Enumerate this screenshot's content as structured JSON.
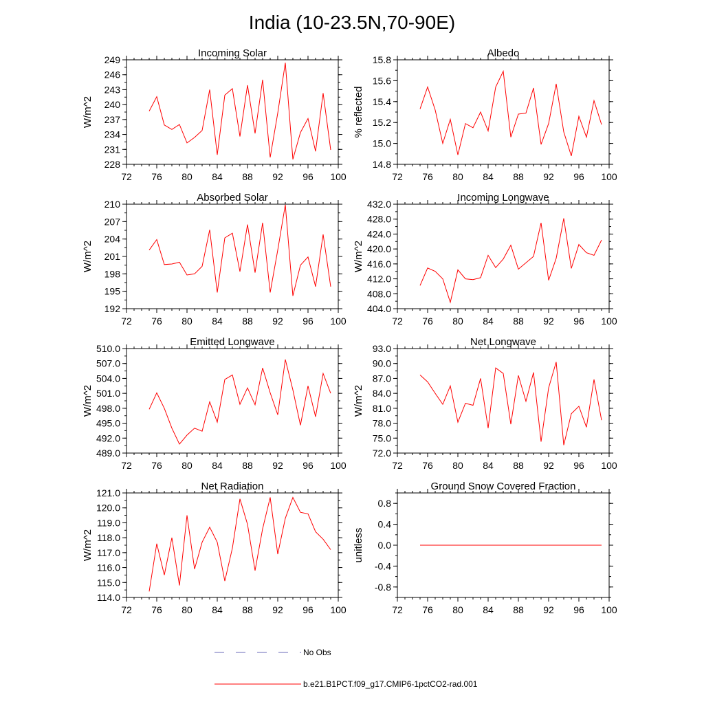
{
  "figure": {
    "title": "India (10-23.5N,70-90E)"
  },
  "legend": {
    "entries": [
      {
        "label": "No Obs",
        "color": "#6a6ab8",
        "style": "dashed"
      },
      {
        "label": "b.e21.B1PCT.f09_g17.CMIP6-1pctCO2-rad.001",
        "color": "#ff0000",
        "style": "solid"
      }
    ]
  },
  "chart_data": [
    {
      "type": "line",
      "title": "Incoming Solar",
      "ylabel": "W/m^2",
      "xlim": [
        72,
        100
      ],
      "ylim": [
        228,
        249
      ],
      "xticks": [
        "72",
        "76",
        "80",
        "84",
        "88",
        "92",
        "96",
        "100"
      ],
      "yticks": [
        "228",
        "231",
        "234",
        "237",
        "240",
        "243",
        "246",
        "249"
      ],
      "series": [
        {
          "color": "#ff0000",
          "x": [
            75,
            76,
            77,
            78,
            79,
            80,
            81,
            82,
            83,
            84,
            85,
            86,
            87,
            88,
            89,
            90,
            91,
            92,
            93,
            94,
            95,
            96,
            97,
            98,
            99
          ],
          "y": [
            238.7,
            241.6,
            235.9,
            235.0,
            236.0,
            232.3,
            233.4,
            234.8,
            243.0,
            229.9,
            241.9,
            243.2,
            233.6,
            243.9,
            234.2,
            245.0,
            229.4,
            238.3,
            248.4,
            229.0,
            234.4,
            237.2,
            230.6,
            242.3,
            230.9
          ]
        }
      ]
    },
    {
      "type": "line",
      "title": "Albedo",
      "ylabel": "% reflected",
      "xlim": [
        72,
        100
      ],
      "ylim": [
        14.8,
        15.8
      ],
      "xticks": [
        "72",
        "76",
        "80",
        "84",
        "88",
        "92",
        "96",
        "100"
      ],
      "yticks": [
        "14.8",
        "15.0",
        "15.2",
        "15.4",
        "15.6",
        "15.8"
      ],
      "series": [
        {
          "color": "#ff0000",
          "x": [
            75,
            76,
            77,
            78,
            79,
            80,
            81,
            82,
            83,
            84,
            85,
            86,
            87,
            88,
            89,
            90,
            91,
            92,
            93,
            94,
            95,
            96,
            97,
            98,
            99
          ],
          "y": [
            15.33,
            15.54,
            15.32,
            15.0,
            15.23,
            14.89,
            15.19,
            15.15,
            15.3,
            15.12,
            15.54,
            15.69,
            15.06,
            15.28,
            15.29,
            15.53,
            14.99,
            15.19,
            15.57,
            15.11,
            14.88,
            15.26,
            15.06,
            15.41,
            15.18
          ]
        }
      ]
    },
    {
      "type": "line",
      "title": "Absorbed Solar",
      "ylabel": "W/m^2",
      "xlim": [
        72,
        100
      ],
      "ylim": [
        192,
        210
      ],
      "xticks": [
        "72",
        "76",
        "80",
        "84",
        "88",
        "92",
        "96",
        "100"
      ],
      "yticks": [
        "192",
        "195",
        "198",
        "201",
        "204",
        "207",
        "210"
      ],
      "series": [
        {
          "color": "#ff0000",
          "x": [
            75,
            76,
            77,
            78,
            79,
            80,
            81,
            82,
            83,
            84,
            85,
            86,
            87,
            88,
            89,
            90,
            91,
            92,
            93,
            94,
            95,
            96,
            97,
            98,
            99
          ],
          "y": [
            202.1,
            203.9,
            199.6,
            199.7,
            200.0,
            197.8,
            198.0,
            199.3,
            205.6,
            194.8,
            204.2,
            205.0,
            198.4,
            206.5,
            198.2,
            206.8,
            194.8,
            202.1,
            209.9,
            194.2,
            199.5,
            200.9,
            195.8,
            204.8,
            195.8
          ]
        }
      ]
    },
    {
      "type": "line",
      "title": "Incoming Longwave",
      "ylabel": "W/m^2",
      "xlim": [
        72,
        100
      ],
      "ylim": [
        404.0,
        432.0
      ],
      "xticks": [
        "72",
        "76",
        "80",
        "84",
        "88",
        "92",
        "96",
        "100"
      ],
      "yticks": [
        "404.0",
        "408.0",
        "412.0",
        "416.0",
        "420.0",
        "424.0",
        "428.0",
        "432.0"
      ],
      "series": [
        {
          "color": "#ff0000",
          "x": [
            75,
            76,
            77,
            78,
            79,
            80,
            81,
            82,
            83,
            84,
            85,
            86,
            87,
            88,
            89,
            90,
            91,
            92,
            93,
            94,
            95,
            96,
            97,
            98,
            99
          ],
          "y": [
            410.2,
            414.9,
            414.0,
            412.0,
            405.7,
            414.4,
            412.0,
            411.8,
            412.3,
            418.3,
            415.0,
            417.3,
            421.0,
            414.6,
            416.3,
            418.0,
            427.0,
            411.6,
            417.5,
            428.2,
            414.8,
            421.2,
            419.0,
            418.3,
            422.4
          ]
        }
      ]
    },
    {
      "type": "line",
      "title": "Emitted Longwave",
      "ylabel": "W/m^2",
      "xlim": [
        72,
        100
      ],
      "ylim": [
        489.0,
        510.0
      ],
      "xticks": [
        "72",
        "76",
        "80",
        "84",
        "88",
        "92",
        "96",
        "100"
      ],
      "yticks": [
        "489.0",
        "492.0",
        "495.0",
        "498.0",
        "501.0",
        "504.0",
        "507.0",
        "510.0"
      ],
      "series": [
        {
          "color": "#ff0000",
          "x": [
            75,
            76,
            77,
            78,
            79,
            80,
            81,
            82,
            83,
            84,
            85,
            86,
            87,
            88,
            89,
            90,
            91,
            92,
            93,
            94,
            95,
            96,
            97,
            98,
            99
          ],
          "y": [
            497.8,
            501.1,
            498.0,
            494.0,
            490.8,
            492.6,
            494.0,
            493.4,
            499.3,
            495.2,
            503.8,
            504.7,
            498.8,
            502.1,
            498.7,
            506.1,
            501.1,
            496.7,
            507.8,
            501.7,
            494.6,
            502.5,
            496.3,
            505.0,
            501.0
          ]
        }
      ]
    },
    {
      "type": "line",
      "title": "Net Longwave",
      "ylabel": "W/m^2",
      "xlim": [
        72,
        100
      ],
      "ylim": [
        72.0,
        93.0
      ],
      "xticks": [
        "72",
        "76",
        "80",
        "84",
        "88",
        "92",
        "96",
        "100"
      ],
      "yticks": [
        "72.0",
        "75.0",
        "78.0",
        "81.0",
        "84.0",
        "87.0",
        "90.0",
        "93.0"
      ],
      "series": [
        {
          "color": "#ff0000",
          "x": [
            75,
            76,
            77,
            78,
            79,
            80,
            81,
            82,
            83,
            84,
            85,
            86,
            87,
            88,
            89,
            90,
            91,
            92,
            93,
            94,
            95,
            96,
            97,
            98,
            99
          ],
          "y": [
            87.7,
            86.3,
            84.0,
            81.8,
            85.5,
            78.2,
            82.0,
            81.6,
            87.0,
            77.0,
            89.1,
            88.0,
            77.8,
            87.6,
            82.4,
            88.2,
            74.3,
            85.1,
            90.3,
            73.6,
            79.9,
            81.4,
            77.2,
            86.8,
            78.6
          ]
        }
      ]
    },
    {
      "type": "line",
      "title": "Net Radiation",
      "ylabel": "W/m^2",
      "xlim": [
        72,
        100
      ],
      "ylim": [
        114.0,
        121.0
      ],
      "xticks": [
        "72",
        "76",
        "80",
        "84",
        "88",
        "92",
        "96",
        "100"
      ],
      "yticks": [
        "114.0",
        "115.0",
        "116.0",
        "117.0",
        "118.0",
        "119.0",
        "120.0",
        "121.0"
      ],
      "series": [
        {
          "color": "#ff0000",
          "x": [
            75,
            76,
            77,
            78,
            79,
            80,
            81,
            82,
            83,
            84,
            85,
            86,
            87,
            88,
            89,
            90,
            91,
            92,
            93,
            94,
            95,
            96,
            97,
            98,
            99
          ],
          "y": [
            114.4,
            117.6,
            115.5,
            118.0,
            114.8,
            119.5,
            115.9,
            117.7,
            118.7,
            117.7,
            115.1,
            117.3,
            120.6,
            118.9,
            115.8,
            118.6,
            120.7,
            116.9,
            119.3,
            120.7,
            119.7,
            119.6,
            118.4,
            117.9,
            117.2
          ]
        }
      ]
    },
    {
      "type": "line",
      "title": "Ground Snow Covered Fraction",
      "ylabel": "unitless",
      "xlim": [
        72,
        100
      ],
      "ylim": [
        -1.0,
        1.0
      ],
      "xticks": [
        "72",
        "76",
        "80",
        "84",
        "88",
        "92",
        "96",
        "100"
      ],
      "yticks": [
        "-0.8",
        "-0.4",
        "0.0",
        "0.4",
        "0.8"
      ],
      "series": [
        {
          "color": "#ff0000",
          "x": [
            75,
            76,
            77,
            78,
            79,
            80,
            81,
            82,
            83,
            84,
            85,
            86,
            87,
            88,
            89,
            90,
            91,
            92,
            93,
            94,
            95,
            96,
            97,
            98,
            99
          ],
          "y": [
            0,
            0,
            0,
            0,
            0,
            0,
            0,
            0,
            0,
            0,
            0,
            0,
            0,
            0,
            0,
            0,
            0,
            0,
            0,
            0,
            0,
            0,
            0,
            0,
            0
          ]
        }
      ]
    }
  ]
}
